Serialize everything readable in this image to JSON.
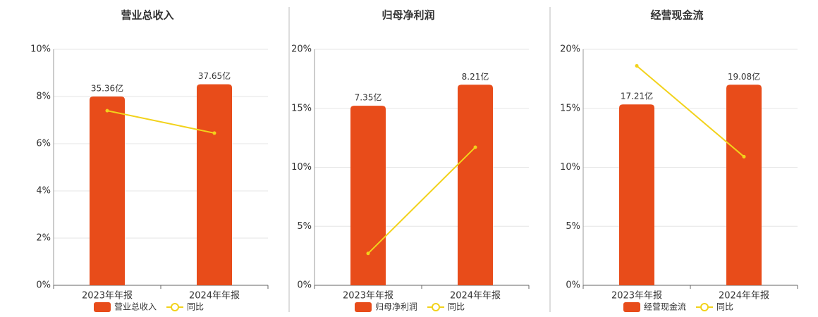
{
  "chart_data": [
    {
      "type": "bar",
      "title": "营业总收入",
      "categories": [
        "2023年年报",
        "2024年年报"
      ],
      "series": [
        {
          "name": "营业总收入",
          "type": "bar",
          "axis": "y2",
          "color": "#e84c1a",
          "values": [
            35.36,
            37.65
          ],
          "value_labels": [
            "35.36亿",
            "37.65亿"
          ]
        },
        {
          "name": "同比",
          "type": "line",
          "color": "#f2d21b",
          "values": [
            7.4,
            6.45
          ]
        }
      ],
      "ylim": [
        0,
        10
      ],
      "yticks": [
        {
          "value": 0,
          "label": "0%"
        },
        {
          "value": 2,
          "label": "2%"
        },
        {
          "value": 4,
          "label": "4%"
        },
        {
          "value": 6,
          "label": "6%"
        },
        {
          "value": 8,
          "label": "8%"
        },
        {
          "value": 10,
          "label": "10%"
        }
      ],
      "y2lim": [
        0,
        44.2
      ],
      "grid": true
    },
    {
      "type": "bar",
      "title": "归母净利润",
      "categories": [
        "2023年年报",
        "2024年年报"
      ],
      "series": [
        {
          "name": "归母净利润",
          "type": "bar",
          "axis": "y2",
          "color": "#e84c1a",
          "values": [
            7.35,
            8.21
          ],
          "value_labels": [
            "7.35亿",
            "8.21亿"
          ]
        },
        {
          "name": "同比",
          "type": "line",
          "color": "#f2d21b",
          "values": [
            2.7,
            11.7
          ]
        }
      ],
      "ylim": [
        0,
        20
      ],
      "yticks": [
        {
          "value": 0,
          "label": "0%"
        },
        {
          "value": 5,
          "label": "5%"
        },
        {
          "value": 10,
          "label": "10%"
        },
        {
          "value": 15,
          "label": "15%"
        },
        {
          "value": 20,
          "label": "20%"
        }
      ],
      "y2lim": [
        0,
        9.66
      ],
      "grid": true
    },
    {
      "type": "bar",
      "title": "经营现金流",
      "categories": [
        "2023年年报",
        "2024年年报"
      ],
      "series": [
        {
          "name": "经营现金流",
          "type": "bar",
          "axis": "y2",
          "color": "#e84c1a",
          "values": [
            17.21,
            19.08
          ],
          "value_labels": [
            "17.21亿",
            "19.08亿"
          ]
        },
        {
          "name": "同比",
          "type": "line",
          "color": "#f2d21b",
          "values": [
            18.6,
            10.9
          ]
        }
      ],
      "ylim": [
        0,
        20
      ],
      "yticks": [
        {
          "value": 0,
          "label": "0%"
        },
        {
          "value": 5,
          "label": "5%"
        },
        {
          "value": 10,
          "label": "10%"
        },
        {
          "value": 15,
          "label": "15%"
        },
        {
          "value": 20,
          "label": "20%"
        }
      ],
      "y2lim": [
        0,
        22.45
      ],
      "grid": true
    }
  ]
}
